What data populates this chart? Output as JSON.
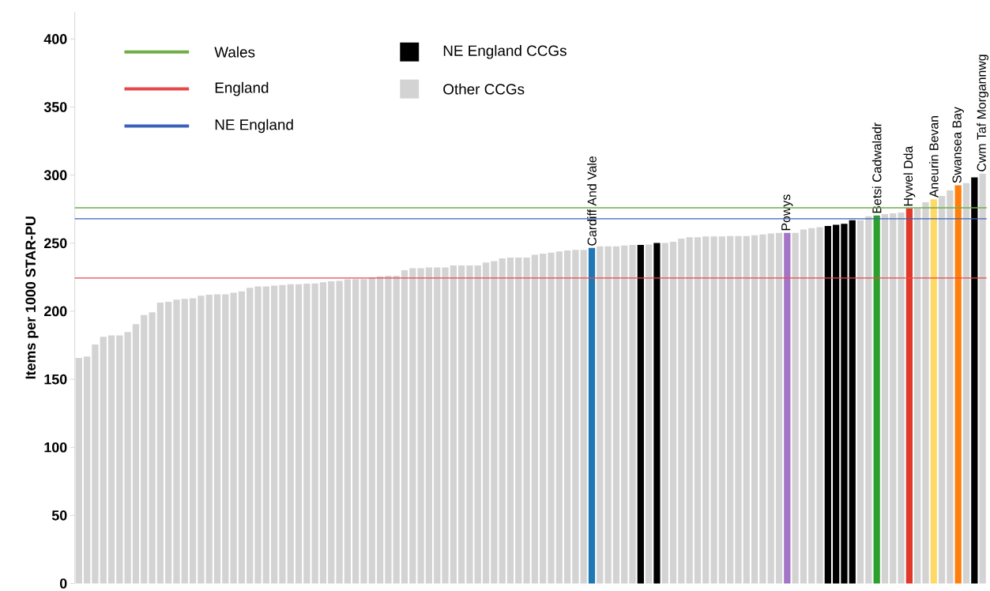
{
  "chart_data": {
    "type": "bar",
    "ylabel": "Items per 1000 STAR-PU",
    "ylim": [
      0,
      420
    ],
    "yticks": [
      0,
      50,
      100,
      150,
      200,
      250,
      300,
      350,
      400
    ],
    "legend": "top left",
    "categories": [
      null,
      null,
      null,
      null,
      null,
      null,
      null,
      null,
      null,
      null,
      null,
      null,
      null,
      null,
      null,
      null,
      null,
      null,
      null,
      null,
      null,
      null,
      null,
      null,
      null,
      null,
      null,
      null,
      null,
      null,
      null,
      null,
      null,
      null,
      null,
      null,
      null,
      null,
      null,
      null,
      null,
      null,
      null,
      null,
      null,
      null,
      null,
      null,
      null,
      null,
      null,
      null,
      null,
      null,
      null,
      null,
      null,
      null,
      null,
      null,
      null,
      null,
      null,
      "Cardiff And Vale",
      null,
      null,
      null,
      null,
      null,
      null,
      null,
      null,
      null,
      null,
      null,
      null,
      null,
      null,
      null,
      null,
      null,
      null,
      null,
      null,
      null,
      null,
      null,
      "Powys",
      null,
      null,
      null,
      null,
      null,
      null,
      null,
      null,
      null,
      null,
      "Betsi Cadwaladr",
      null,
      null,
      null,
      "Hywel Dda",
      null,
      null,
      "Aneurin Bevan",
      null,
      null,
      "Swansea Bay",
      null,
      null,
      "Cwm Taf Morgannwg"
    ],
    "series": [
      {
        "name": "NE England CCGs",
        "color": "#000000",
        "values": [
          null,
          null,
          null,
          null,
          null,
          null,
          null,
          null,
          null,
          null,
          null,
          null,
          null,
          null,
          null,
          null,
          null,
          null,
          null,
          null,
          null,
          null,
          null,
          null,
          null,
          null,
          null,
          null,
          null,
          null,
          null,
          null,
          null,
          null,
          null,
          null,
          null,
          null,
          null,
          null,
          null,
          null,
          null,
          null,
          null,
          null,
          null,
          null,
          null,
          null,
          null,
          null,
          null,
          null,
          null,
          null,
          null,
          null,
          null,
          null,
          null,
          null,
          null,
          null,
          null,
          null,
          null,
          null,
          null,
          248.7,
          null,
          250.2,
          null,
          null,
          null,
          null,
          null,
          null,
          null,
          null,
          null,
          null,
          null,
          null,
          null,
          null,
          null,
          null,
          null,
          null,
          null,
          null,
          262.7,
          263.6,
          264.2,
          266.9,
          null,
          null,
          null,
          null,
          null,
          null,
          null,
          null,
          null,
          null,
          null,
          null,
          null,
          null,
          298.3,
          null
        ]
      },
      {
        "name": "Other CCGs",
        "color": "#d3d3d3",
        "values": [
          165.7,
          166.7,
          175.6,
          181.3,
          182.2,
          182.2,
          184.8,
          190.5,
          197.2,
          199.2,
          206.4,
          207,
          208.5,
          209.1,
          209.5,
          211.5,
          212.1,
          212.5,
          212.5,
          213.6,
          214.6,
          217.2,
          218.2,
          218.2,
          218.8,
          219.3,
          219.9,
          219.9,
          220.3,
          220.5,
          221.3,
          222,
          222.3,
          223.5,
          223.6,
          223.6,
          224.8,
          225.6,
          226.1,
          226.1,
          230.1,
          231.6,
          231.6,
          232.2,
          232.2,
          232.2,
          233.7,
          233.7,
          233.7,
          233.7,
          235.8,
          236.9,
          238.8,
          239.4,
          239.4,
          239.4,
          241.5,
          242.4,
          243,
          244,
          244.6,
          245.1,
          245.1,
          null,
          247.7,
          247.7,
          247.7,
          248.3,
          248.7,
          null,
          249,
          null,
          250.2,
          251,
          253.4,
          254.4,
          254.4,
          254.9,
          254.9,
          254.9,
          255.3,
          255.3,
          255.3,
          255.9,
          256.4,
          257.2,
          257.6,
          null,
          257.6,
          260.1,
          261.1,
          261.8,
          null,
          null,
          null,
          null,
          266.9,
          269.7,
          null,
          271.4,
          272,
          272.5,
          null,
          275.6,
          280.1,
          null,
          284.7,
          288.8,
          null,
          294.1,
          null,
          null
        ]
      },
      {
        "colors": [
          null,
          null,
          null,
          null,
          null,
          null,
          null,
          null,
          null,
          null,
          null,
          null,
          null,
          null,
          null,
          null,
          null,
          null,
          null,
          null,
          null,
          null,
          null,
          null,
          null,
          null,
          null,
          null,
          null,
          null,
          null,
          null,
          null,
          null,
          null,
          null,
          null,
          null,
          null,
          null,
          null,
          null,
          null,
          null,
          null,
          null,
          null,
          null,
          null,
          null,
          null,
          null,
          null,
          null,
          null,
          null,
          null,
          null,
          null,
          null,
          null,
          null,
          null,
          "#1f77b4",
          null,
          null,
          null,
          null,
          null,
          null,
          null,
          null,
          null,
          null,
          null,
          null,
          null,
          null,
          null,
          null,
          null,
          null,
          null,
          null,
          null,
          null,
          null,
          "#a475c6",
          null,
          null,
          null,
          null,
          null,
          null,
          null,
          null,
          null,
          null,
          "#2ca02c",
          null,
          null,
          null,
          "#e0392b",
          null,
          null,
          "#ffd966",
          null,
          null,
          "#ff7f0e",
          null,
          null,
          "#d3d3d3"
        ],
        "values": [
          null,
          null,
          null,
          null,
          null,
          null,
          null,
          null,
          null,
          null,
          null,
          null,
          null,
          null,
          null,
          null,
          null,
          null,
          null,
          null,
          null,
          null,
          null,
          null,
          null,
          null,
          null,
          null,
          null,
          null,
          null,
          null,
          null,
          null,
          null,
          null,
          null,
          null,
          null,
          null,
          null,
          null,
          null,
          null,
          null,
          null,
          null,
          null,
          null,
          null,
          null,
          null,
          null,
          null,
          null,
          null,
          null,
          null,
          null,
          null,
          null,
          null,
          null,
          246.6,
          null,
          null,
          null,
          null,
          null,
          null,
          null,
          null,
          null,
          null,
          null,
          null,
          null,
          null,
          null,
          null,
          null,
          null,
          null,
          null,
          null,
          null,
          null,
          257.6,
          null,
          null,
          null,
          null,
          null,
          null,
          null,
          null,
          null,
          null,
          270.3,
          null,
          null,
          null,
          275.6,
          null,
          null,
          282.2,
          null,
          null,
          292.6,
          null,
          null,
          301.1
        ]
      }
    ],
    "ref_lines": [
      {
        "axis": "y",
        "value": 276,
        "label": "Wales",
        "color": "#70ad47"
      },
      {
        "axis": "y",
        "value": 224.4,
        "label": "England",
        "color": "#e8474a"
      },
      {
        "axis": "y",
        "value": 268,
        "label": "NE England",
        "color": "#3a62b8"
      }
    ]
  }
}
